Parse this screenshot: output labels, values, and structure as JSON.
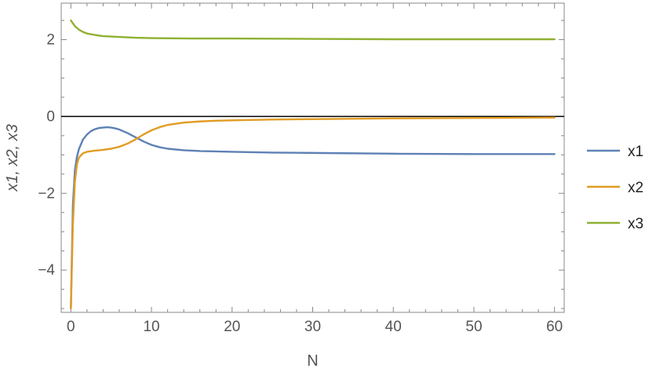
{
  "chart_data": {
    "type": "line",
    "title": "",
    "xlabel": "N",
    "ylabel": "x1, x2, x3",
    "xlim": [
      -1.2,
      61.2
    ],
    "ylim": [
      -5.1,
      2.95
    ],
    "xticks": [
      0,
      10,
      20,
      30,
      40,
      50,
      60
    ],
    "yticks": [
      -4,
      -2,
      0,
      2
    ],
    "ytick_labels": [
      "−4",
      "−2",
      "0",
      "2"
    ],
    "zero_line": true,
    "grid": false,
    "legend_position": "right",
    "series": [
      {
        "name": "x1",
        "color": "#5e81b5",
        "x": [
          0,
          0.25,
          0.5,
          0.75,
          1,
          1.5,
          2,
          2.5,
          3,
          3.5,
          4,
          4.5,
          5,
          5.5,
          6,
          7,
          8,
          9,
          10,
          11,
          12,
          14,
          16,
          18,
          20,
          25,
          30,
          40,
          50,
          60
        ],
        "y": [
          -5.0,
          -2.3,
          -1.4,
          -1.05,
          -0.85,
          -0.6,
          -0.47,
          -0.38,
          -0.33,
          -0.3,
          -0.29,
          -0.28,
          -0.29,
          -0.31,
          -0.34,
          -0.43,
          -0.54,
          -0.65,
          -0.74,
          -0.8,
          -0.84,
          -0.88,
          -0.9,
          -0.91,
          -0.92,
          -0.94,
          -0.95,
          -0.97,
          -0.98,
          -0.98
        ]
      },
      {
        "name": "x2",
        "color": "#e19c24",
        "x": [
          0,
          0.25,
          0.5,
          0.75,
          1,
          1.5,
          2,
          3,
          4,
          5,
          6,
          7,
          8,
          9,
          10,
          11,
          12,
          14,
          16,
          18,
          20,
          25,
          30,
          40,
          50,
          60
        ],
        "y": [
          -5.0,
          -2.8,
          -1.7,
          -1.25,
          -1.07,
          -0.96,
          -0.92,
          -0.89,
          -0.87,
          -0.84,
          -0.79,
          -0.71,
          -0.6,
          -0.47,
          -0.36,
          -0.28,
          -0.22,
          -0.16,
          -0.13,
          -0.11,
          -0.1,
          -0.08,
          -0.07,
          -0.05,
          -0.04,
          -0.03
        ]
      },
      {
        "name": "x3",
        "color": "#8fb032",
        "x": [
          0,
          0.5,
          1,
          1.5,
          2,
          3,
          4,
          5,
          6,
          8,
          10,
          15,
          20,
          30,
          40,
          50,
          60
        ],
        "y": [
          2.5,
          2.35,
          2.26,
          2.2,
          2.16,
          2.12,
          2.09,
          2.08,
          2.07,
          2.05,
          2.04,
          2.03,
          2.03,
          2.02,
          2.01,
          2.01,
          2.01
        ]
      }
    ]
  }
}
